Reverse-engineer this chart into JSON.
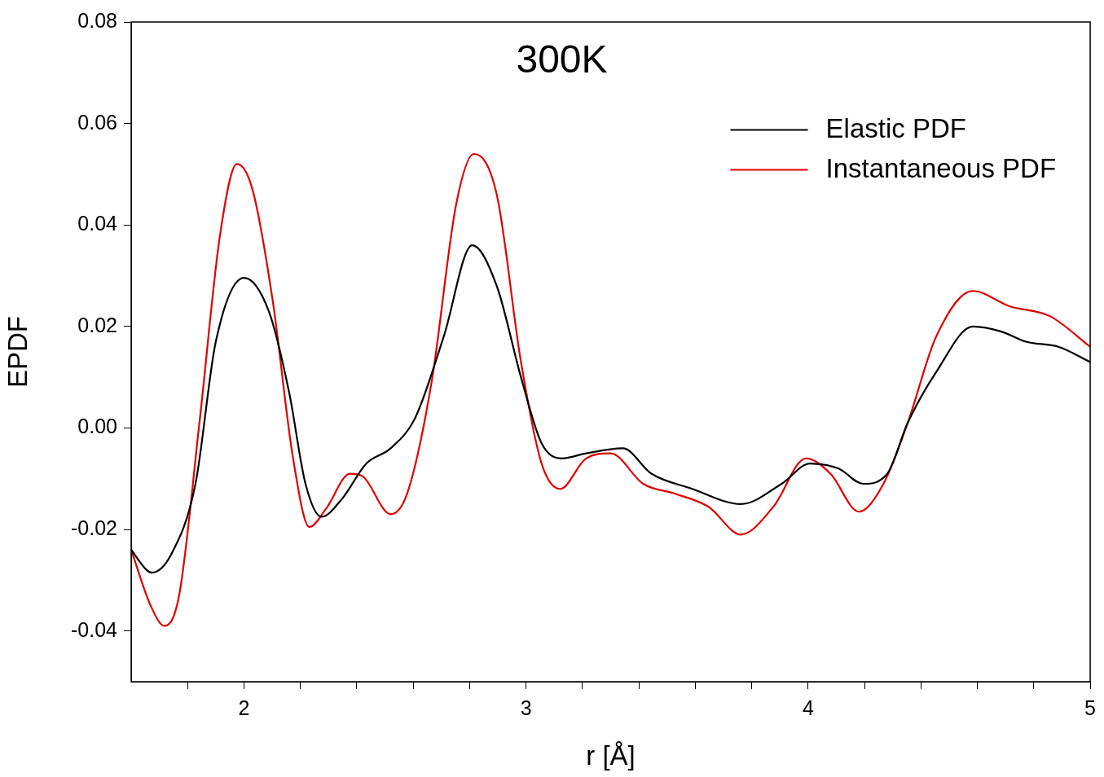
{
  "chart_data": {
    "type": "line",
    "title": "300K",
    "xlabel": "r [Å]",
    "ylabel": "EPDF",
    "xlim": [
      1.6,
      5
    ],
    "ylim": [
      -0.05,
      0.08
    ],
    "xticks": [
      {
        "value": 1.8,
        "label": null
      },
      2,
      {
        "value": 2.2,
        "label": null
      },
      {
        "value": 2.4,
        "label": null
      },
      {
        "value": 2.6,
        "label": null
      },
      {
        "value": 2.8,
        "label": null
      },
      3,
      {
        "value": 3.2,
        "label": null
      },
      {
        "value": 3.4,
        "label": null
      },
      {
        "value": 3.6,
        "label": null
      },
      {
        "value": 3.8,
        "label": null
      },
      4,
      {
        "value": 4.2,
        "label": null
      },
      {
        "value": 4.4,
        "label": null
      },
      {
        "value": 4.6,
        "label": null
      },
      {
        "value": 4.8,
        "label": null
      },
      5
    ],
    "yticks": [
      {
        "value": -0.04,
        "label": "-0.04"
      },
      {
        "value": -0.02,
        "label": "-0.02"
      },
      {
        "value": 0,
        "label": "0.00"
      },
      {
        "value": 0.02,
        "label": "0.02"
      },
      {
        "value": 0.04,
        "label": "0.04"
      },
      {
        "value": 0.06,
        "label": "0.06"
      },
      {
        "value": 0.08,
        "label": "0.08"
      }
    ],
    "grid": false,
    "legend": "top right",
    "marker": "none",
    "line_style": "solid",
    "series": [
      {
        "name": "Elastic PDF",
        "color": "#000000",
        "x": [
          1.6,
          1.655,
          1.672,
          1.741,
          1.828,
          1.9,
          2.0,
          2.088,
          2.16,
          2.218,
          2.275,
          2.347,
          2.434,
          2.52,
          2.607,
          2.708,
          2.809,
          2.896,
          2.982,
          3.055,
          3.127,
          3.213,
          3.343,
          3.444,
          3.589,
          3.762,
          3.906,
          4.007,
          4.108,
          4.195,
          4.281,
          4.353,
          4.454,
          4.584,
          4.685,
          4.772,
          4.887,
          5.0
        ],
        "values": [
          -0.024,
          -0.028,
          -0.0285,
          -0.025,
          -0.011,
          0.017,
          0.0296,
          0.023,
          0.007,
          -0.011,
          -0.0175,
          -0.014,
          -0.007,
          -0.004,
          0.002,
          0.018,
          0.036,
          0.028,
          0.01,
          -0.003,
          -0.006,
          -0.005,
          -0.004,
          -0.009,
          -0.012,
          -0.015,
          -0.011,
          -0.007,
          -0.008,
          -0.011,
          -0.009,
          0.001,
          0.011,
          0.02,
          0.019,
          0.017,
          0.016,
          0.013
        ]
      },
      {
        "name": "Instantaneous PDF",
        "color": "#e00000",
        "x": [
          1.6,
          1.669,
          1.718,
          1.77,
          1.842,
          1.915,
          1.975,
          2.03,
          2.102,
          2.174,
          2.232,
          2.29,
          2.376,
          2.42,
          2.52,
          2.578,
          2.665,
          2.752,
          2.815,
          2.896,
          2.982,
          3.055,
          3.121,
          3.213,
          3.3,
          3.415,
          3.531,
          3.646,
          3.762,
          3.877,
          3.992,
          4.079,
          4.18,
          4.267,
          4.353,
          4.454,
          4.584,
          4.714,
          4.858,
          5.0
        ],
        "values": [
          -0.024,
          -0.035,
          -0.039,
          -0.033,
          0.001,
          0.038,
          0.052,
          0.047,
          0.025,
          -0.006,
          -0.0195,
          -0.016,
          -0.009,
          -0.0095,
          -0.017,
          -0.013,
          0.009,
          0.044,
          0.054,
          0.046,
          0.013,
          -0.007,
          -0.012,
          -0.006,
          -0.005,
          -0.011,
          -0.013,
          -0.0155,
          -0.021,
          -0.0155,
          -0.006,
          -0.009,
          -0.0165,
          -0.011,
          0.001,
          0.018,
          0.027,
          0.024,
          0.022,
          0.016
        ]
      }
    ]
  }
}
